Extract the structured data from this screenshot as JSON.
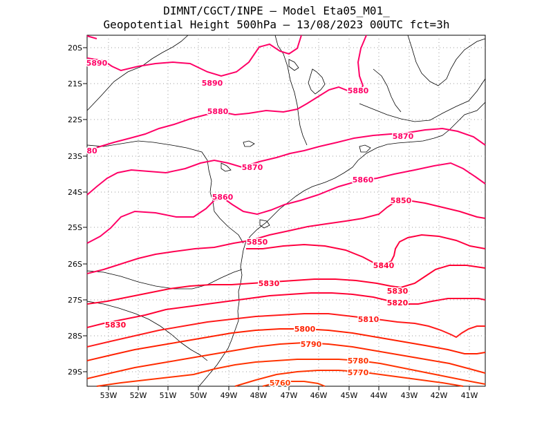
{
  "title": {
    "line1": "DIMNT/CGCT/INPE –  Model Eta05_M01_",
    "line2": "Geopotential Height 500hPa –  13/08/2023 00UTC fct=3h"
  },
  "axes": {
    "lat_labels": [
      "20S",
      "21S",
      "22S",
      "23S",
      "24S",
      "25S",
      "26S",
      "27S",
      "28S",
      "29S"
    ],
    "lon_labels": [
      "53W",
      "52W",
      "51W",
      "50W",
      "49W",
      "48W",
      "47W",
      "46W",
      "45W",
      "44W",
      "43W",
      "42W",
      "41W"
    ]
  },
  "contour_labels": [
    {
      "text": "5890",
      "color": "#ff0066"
    },
    {
      "text": "5890",
      "color": "#ff0066"
    },
    {
      "text": "5880",
      "color": "#ff0066"
    },
    {
      "text": "5880",
      "color": "#ff0066"
    },
    {
      "text": "80",
      "color": "#ff0066"
    },
    {
      "text": "5870",
      "color": "#ff0066"
    },
    {
      "text": "5870",
      "color": "#ff0066"
    },
    {
      "text": "5860",
      "color": "#ff0066"
    },
    {
      "text": "5860",
      "color": "#ff0066"
    },
    {
      "text": "5850",
      "color": "#ff0050"
    },
    {
      "text": "5850",
      "color": "#ff0050"
    },
    {
      "text": "5840",
      "color": "#ff0040"
    },
    {
      "text": "5830",
      "color": "#ff0033"
    },
    {
      "text": "5830",
      "color": "#ff0033"
    },
    {
      "text": "5830",
      "color": "#ff0033"
    },
    {
      "text": "5820",
      "color": "#ff0033"
    },
    {
      "text": "5810",
      "color": "#ff1a1a"
    },
    {
      "text": "5800",
      "color": "#ff2000"
    },
    {
      "text": "5790",
      "color": "#ff2a00"
    },
    {
      "text": "5780",
      "color": "#ff3300"
    },
    {
      "text": "5770",
      "color": "#ff3300"
    },
    {
      "text": "5760",
      "color": "#ff3c00"
    }
  ],
  "colors": {
    "contour_high": "#ff0066",
    "contour_mid": "#ff0033",
    "contour_low": "#ff3300",
    "coast": "#000000",
    "grid": "#9a9a9a"
  }
}
